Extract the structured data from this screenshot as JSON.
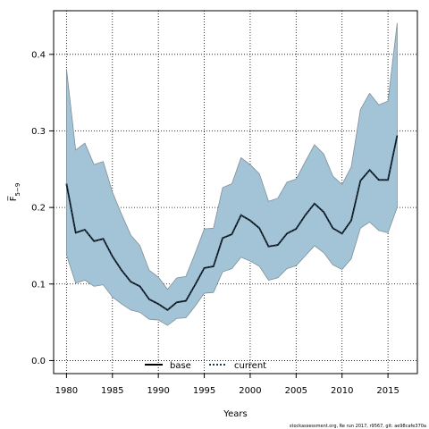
{
  "chart_data": {
    "type": "line",
    "xlabel": "Years",
    "ylabel": "F̅",
    "ylabel_sub": "5−9",
    "xlim": [
      1978.6,
      2018.2
    ],
    "ylim": [
      -0.017,
      0.457
    ],
    "xticks": [
      1980,
      1985,
      1990,
      1995,
      2000,
      2005,
      2010,
      2015
    ],
    "yticks": [
      0.0,
      0.1,
      0.2,
      0.3,
      0.4
    ],
    "ytick_labels": [
      "0.0",
      "0.1",
      "0.2",
      "0.3",
      "0.4"
    ],
    "grid": true,
    "legend_position": "bottom-center",
    "colors": {
      "band_fill": "#a3c4d6",
      "band_edge": "#7f8f98",
      "base": "#000000",
      "current": "#1f3b4d"
    },
    "x": [
      1980,
      1981,
      1982,
      1983,
      1984,
      1985,
      1986,
      1987,
      1988,
      1989,
      1990,
      1991,
      1992,
      1993,
      1994,
      1995,
      1996,
      1997,
      1998,
      1999,
      2000,
      2001,
      2002,
      2003,
      2004,
      2005,
      2006,
      2007,
      2008,
      2009,
      2010,
      2011,
      2012,
      2013,
      2014,
      2015,
      2016
    ],
    "series": [
      {
        "name": "base",
        "style": "solid",
        "values": [
          0.231,
          0.167,
          0.171,
          0.156,
          0.159,
          0.136,
          0.118,
          0.103,
          0.097,
          0.08,
          0.074,
          0.066,
          0.076,
          0.078,
          0.099,
          0.121,
          0.123,
          0.16,
          0.165,
          0.19,
          0.183,
          0.173,
          0.149,
          0.151,
          0.166,
          0.172,
          0.19,
          0.205,
          0.194,
          0.173,
          0.166,
          0.183,
          0.235,
          0.249,
          0.236,
          0.236,
          0.294
        ]
      },
      {
        "name": "current",
        "style": "dotted",
        "values": [
          0.231,
          0.167,
          0.171,
          0.156,
          0.159,
          0.136,
          0.118,
          0.103,
          0.097,
          0.08,
          0.074,
          0.066,
          0.076,
          0.078,
          0.099,
          0.121,
          0.123,
          0.16,
          0.165,
          0.19,
          0.183,
          0.173,
          0.149,
          0.151,
          0.166,
          0.172,
          0.19,
          0.205,
          0.194,
          0.173,
          0.166,
          0.183,
          0.235,
          0.249,
          0.236,
          0.236,
          0.294
        ]
      }
    ],
    "band": {
      "lower": [
        0.138,
        0.101,
        0.105,
        0.097,
        0.099,
        0.083,
        0.074,
        0.066,
        0.063,
        0.054,
        0.053,
        0.046,
        0.055,
        0.056,
        0.071,
        0.088,
        0.089,
        0.116,
        0.12,
        0.135,
        0.13,
        0.123,
        0.105,
        0.108,
        0.12,
        0.124,
        0.137,
        0.15,
        0.141,
        0.125,
        0.119,
        0.133,
        0.173,
        0.181,
        0.17,
        0.167,
        0.2
      ],
      "upper": [
        0.381,
        0.275,
        0.284,
        0.256,
        0.26,
        0.22,
        0.191,
        0.164,
        0.15,
        0.118,
        0.109,
        0.093,
        0.108,
        0.11,
        0.14,
        0.172,
        0.173,
        0.226,
        0.231,
        0.265,
        0.256,
        0.244,
        0.208,
        0.212,
        0.233,
        0.237,
        0.26,
        0.282,
        0.27,
        0.241,
        0.23,
        0.253,
        0.328,
        0.349,
        0.334,
        0.339,
        0.441
      ]
    },
    "legend": [
      "base",
      "current"
    ],
    "footnote": "stockassessment.org, Re run 2017, r9567, git: ae98cafe370a"
  }
}
